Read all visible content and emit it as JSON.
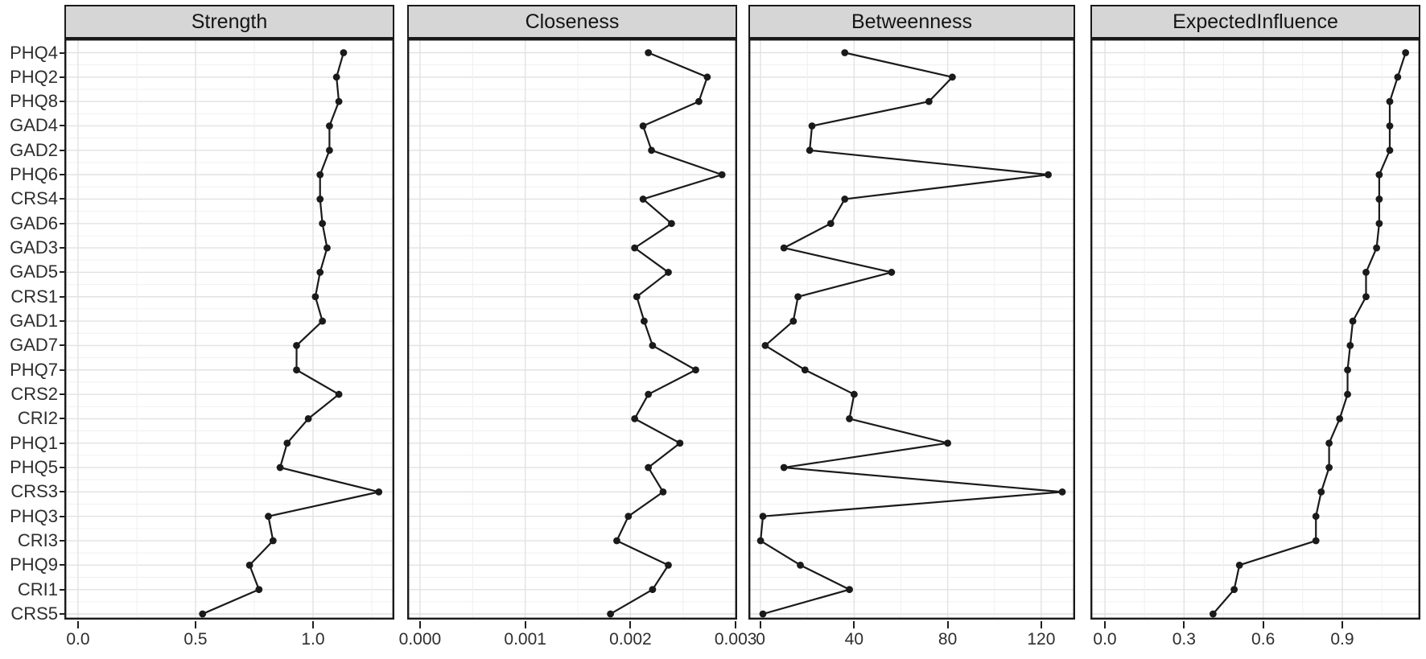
{
  "chart_data": {
    "type": "line",
    "title": "",
    "subtitle": "",
    "orientation": "dot-line centrality plot, one line per facet, items on y-axis",
    "grid": "on",
    "legend": "none",
    "categories": [
      "PHQ4",
      "PHQ2",
      "PHQ8",
      "GAD4",
      "GAD2",
      "PHQ6",
      "CRS4",
      "GAD6",
      "GAD3",
      "GAD5",
      "CRS1",
      "GAD1",
      "GAD7",
      "PHQ7",
      "CRS2",
      "CRI2",
      "PHQ1",
      "PHQ5",
      "CRS3",
      "PHQ3",
      "CRI3",
      "PHQ9",
      "CRI1",
      "CRS5"
    ],
    "panels": [
      {
        "title": "Strength",
        "xlim": [
          -0.058,
          1.346
        ],
        "major_ticks": [
          0.0,
          0.5,
          1.0
        ],
        "tick_labels": [
          "0.0",
          "0.5",
          "1.0"
        ],
        "minor_ticks": [
          0.25,
          0.75,
          1.25
        ],
        "values": [
          1.13,
          1.1,
          1.11,
          1.07,
          1.07,
          1.03,
          1.03,
          1.04,
          1.06,
          1.03,
          1.01,
          1.04,
          0.93,
          0.93,
          1.11,
          0.98,
          0.89,
          0.86,
          1.28,
          0.81,
          0.83,
          0.73,
          0.77,
          0.53
        ]
      },
      {
        "title": "Closeness",
        "xlim": [
          -0.000122,
          0.003014
        ],
        "major_ticks": [
          0.0,
          0.001,
          0.002,
          0.003
        ],
        "tick_labels": [
          "0.000",
          "0.001",
          "0.002",
          "0.003"
        ],
        "minor_ticks": [
          0.0005,
          0.0015,
          0.0025
        ],
        "values": [
          0.00217,
          0.00273,
          0.00265,
          0.00212,
          0.0022,
          0.00287,
          0.00212,
          0.00239,
          0.00204,
          0.00236,
          0.00206,
          0.00213,
          0.00221,
          0.00262,
          0.00217,
          0.00204,
          0.00247,
          0.00217,
          0.00231,
          0.00198,
          0.00187,
          0.00236,
          0.00221,
          0.00181
        ]
      },
      {
        "title": "Betweenness",
        "xlim": [
          -5.2,
          134.5
        ],
        "major_ticks": [
          0,
          40,
          80,
          120
        ],
        "tick_labels": [
          "0",
          "40",
          "80",
          "120"
        ],
        "minor_ticks": [
          20,
          60,
          100
        ],
        "values": [
          36,
          82,
          72,
          22,
          21,
          123,
          36,
          30,
          10,
          56,
          16,
          14,
          2,
          19,
          40,
          38,
          80,
          10,
          129,
          1,
          0,
          17,
          38,
          1
        ]
      },
      {
        "title": "ExpectedInfluence",
        "xlim": [
          -0.055,
          1.196
        ],
        "major_ticks": [
          0.0,
          0.3,
          0.6,
          0.9
        ],
        "tick_labels": [
          "0.0",
          "0.3",
          "0.6",
          "0.9"
        ],
        "minor_ticks": [
          0.15,
          0.45,
          0.75,
          1.05
        ],
        "values": [
          1.14,
          1.11,
          1.08,
          1.08,
          1.08,
          1.04,
          1.04,
          1.04,
          1.03,
          0.99,
          0.99,
          0.94,
          0.93,
          0.92,
          0.92,
          0.89,
          0.85,
          0.85,
          0.82,
          0.8,
          0.8,
          0.51,
          0.49,
          0.41
        ]
      }
    ],
    "colors": {
      "line": "#1a1a1a",
      "point": "#1a1a1a",
      "grid_major": "#e2e2e2",
      "grid_minor": "#f0f0f0",
      "strip_bg": "#d6d6d6",
      "panel_border": "#1a1a1a",
      "axis_text": "#2e2e2e",
      "background": "#ffffff"
    }
  }
}
